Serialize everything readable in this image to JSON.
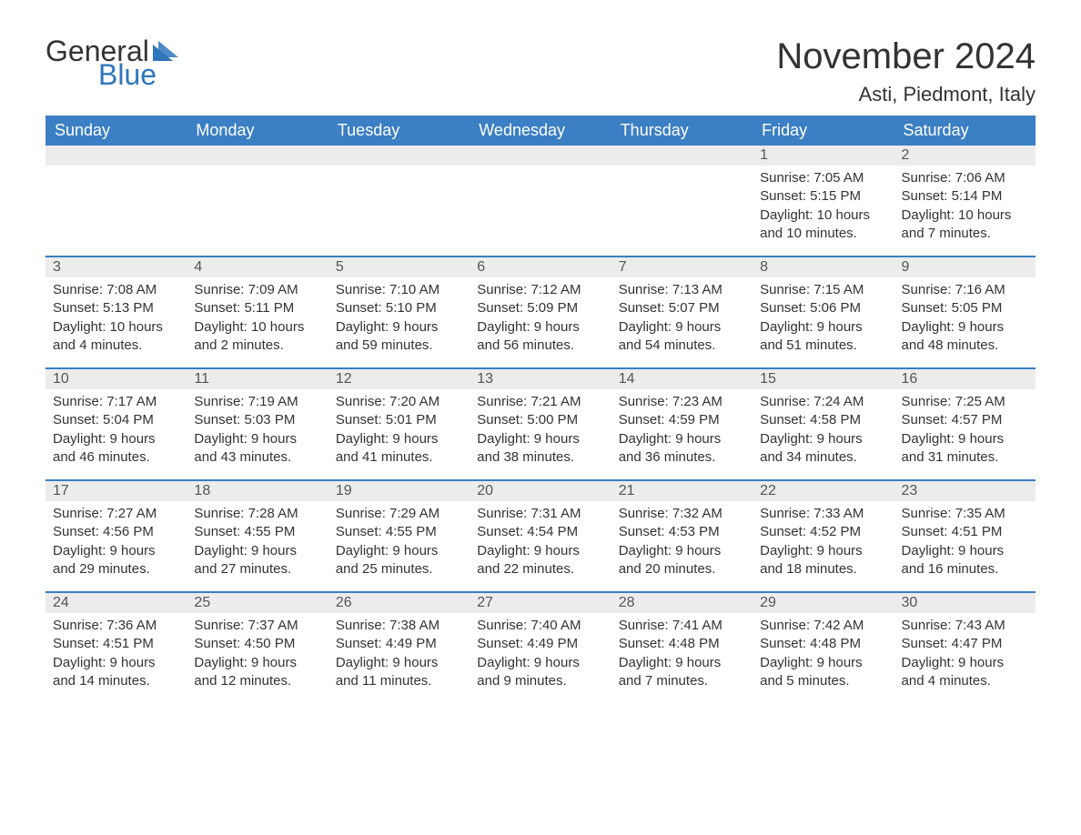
{
  "logo": {
    "text1": "General",
    "text2": "Blue",
    "icon_color": "#2f76bb"
  },
  "title": "November 2024",
  "location": "Asti, Piedmont, Italy",
  "colors": {
    "header_bg": "#3b7fc4",
    "header_text": "#ffffff",
    "daynum_bg": "#ececec",
    "border": "#3b7fc4",
    "text": "#333333",
    "logo_blue": "#2f76bb",
    "background": "#ffffff"
  },
  "day_names": [
    "Sunday",
    "Monday",
    "Tuesday",
    "Wednesday",
    "Thursday",
    "Friday",
    "Saturday"
  ],
  "weeks": [
    [
      null,
      null,
      null,
      null,
      null,
      {
        "n": "1",
        "sunrise": "Sunrise: 7:05 AM",
        "sunset": "Sunset: 5:15 PM",
        "daylight": "Daylight: 10 hours and 10 minutes."
      },
      {
        "n": "2",
        "sunrise": "Sunrise: 7:06 AM",
        "sunset": "Sunset: 5:14 PM",
        "daylight": "Daylight: 10 hours and 7 minutes."
      }
    ],
    [
      {
        "n": "3",
        "sunrise": "Sunrise: 7:08 AM",
        "sunset": "Sunset: 5:13 PM",
        "daylight": "Daylight: 10 hours and 4 minutes."
      },
      {
        "n": "4",
        "sunrise": "Sunrise: 7:09 AM",
        "sunset": "Sunset: 5:11 PM",
        "daylight": "Daylight: 10 hours and 2 minutes."
      },
      {
        "n": "5",
        "sunrise": "Sunrise: 7:10 AM",
        "sunset": "Sunset: 5:10 PM",
        "daylight": "Daylight: 9 hours and 59 minutes."
      },
      {
        "n": "6",
        "sunrise": "Sunrise: 7:12 AM",
        "sunset": "Sunset: 5:09 PM",
        "daylight": "Daylight: 9 hours and 56 minutes."
      },
      {
        "n": "7",
        "sunrise": "Sunrise: 7:13 AM",
        "sunset": "Sunset: 5:07 PM",
        "daylight": "Daylight: 9 hours and 54 minutes."
      },
      {
        "n": "8",
        "sunrise": "Sunrise: 7:15 AM",
        "sunset": "Sunset: 5:06 PM",
        "daylight": "Daylight: 9 hours and 51 minutes."
      },
      {
        "n": "9",
        "sunrise": "Sunrise: 7:16 AM",
        "sunset": "Sunset: 5:05 PM",
        "daylight": "Daylight: 9 hours and 48 minutes."
      }
    ],
    [
      {
        "n": "10",
        "sunrise": "Sunrise: 7:17 AM",
        "sunset": "Sunset: 5:04 PM",
        "daylight": "Daylight: 9 hours and 46 minutes."
      },
      {
        "n": "11",
        "sunrise": "Sunrise: 7:19 AM",
        "sunset": "Sunset: 5:03 PM",
        "daylight": "Daylight: 9 hours and 43 minutes."
      },
      {
        "n": "12",
        "sunrise": "Sunrise: 7:20 AM",
        "sunset": "Sunset: 5:01 PM",
        "daylight": "Daylight: 9 hours and 41 minutes."
      },
      {
        "n": "13",
        "sunrise": "Sunrise: 7:21 AM",
        "sunset": "Sunset: 5:00 PM",
        "daylight": "Daylight: 9 hours and 38 minutes."
      },
      {
        "n": "14",
        "sunrise": "Sunrise: 7:23 AM",
        "sunset": "Sunset: 4:59 PM",
        "daylight": "Daylight: 9 hours and 36 minutes."
      },
      {
        "n": "15",
        "sunrise": "Sunrise: 7:24 AM",
        "sunset": "Sunset: 4:58 PM",
        "daylight": "Daylight: 9 hours and 34 minutes."
      },
      {
        "n": "16",
        "sunrise": "Sunrise: 7:25 AM",
        "sunset": "Sunset: 4:57 PM",
        "daylight": "Daylight: 9 hours and 31 minutes."
      }
    ],
    [
      {
        "n": "17",
        "sunrise": "Sunrise: 7:27 AM",
        "sunset": "Sunset: 4:56 PM",
        "daylight": "Daylight: 9 hours and 29 minutes."
      },
      {
        "n": "18",
        "sunrise": "Sunrise: 7:28 AM",
        "sunset": "Sunset: 4:55 PM",
        "daylight": "Daylight: 9 hours and 27 minutes."
      },
      {
        "n": "19",
        "sunrise": "Sunrise: 7:29 AM",
        "sunset": "Sunset: 4:55 PM",
        "daylight": "Daylight: 9 hours and 25 minutes."
      },
      {
        "n": "20",
        "sunrise": "Sunrise: 7:31 AM",
        "sunset": "Sunset: 4:54 PM",
        "daylight": "Daylight: 9 hours and 22 minutes."
      },
      {
        "n": "21",
        "sunrise": "Sunrise: 7:32 AM",
        "sunset": "Sunset: 4:53 PM",
        "daylight": "Daylight: 9 hours and 20 minutes."
      },
      {
        "n": "22",
        "sunrise": "Sunrise: 7:33 AM",
        "sunset": "Sunset: 4:52 PM",
        "daylight": "Daylight: 9 hours and 18 minutes."
      },
      {
        "n": "23",
        "sunrise": "Sunrise: 7:35 AM",
        "sunset": "Sunset: 4:51 PM",
        "daylight": "Daylight: 9 hours and 16 minutes."
      }
    ],
    [
      {
        "n": "24",
        "sunrise": "Sunrise: 7:36 AM",
        "sunset": "Sunset: 4:51 PM",
        "daylight": "Daylight: 9 hours and 14 minutes."
      },
      {
        "n": "25",
        "sunrise": "Sunrise: 7:37 AM",
        "sunset": "Sunset: 4:50 PM",
        "daylight": "Daylight: 9 hours and 12 minutes."
      },
      {
        "n": "26",
        "sunrise": "Sunrise: 7:38 AM",
        "sunset": "Sunset: 4:49 PM",
        "daylight": "Daylight: 9 hours and 11 minutes."
      },
      {
        "n": "27",
        "sunrise": "Sunrise: 7:40 AM",
        "sunset": "Sunset: 4:49 PM",
        "daylight": "Daylight: 9 hours and 9 minutes."
      },
      {
        "n": "28",
        "sunrise": "Sunrise: 7:41 AM",
        "sunset": "Sunset: 4:48 PM",
        "daylight": "Daylight: 9 hours and 7 minutes."
      },
      {
        "n": "29",
        "sunrise": "Sunrise: 7:42 AM",
        "sunset": "Sunset: 4:48 PM",
        "daylight": "Daylight: 9 hours and 5 minutes."
      },
      {
        "n": "30",
        "sunrise": "Sunrise: 7:43 AM",
        "sunset": "Sunset: 4:47 PM",
        "daylight": "Daylight: 9 hours and 4 minutes."
      }
    ]
  ]
}
